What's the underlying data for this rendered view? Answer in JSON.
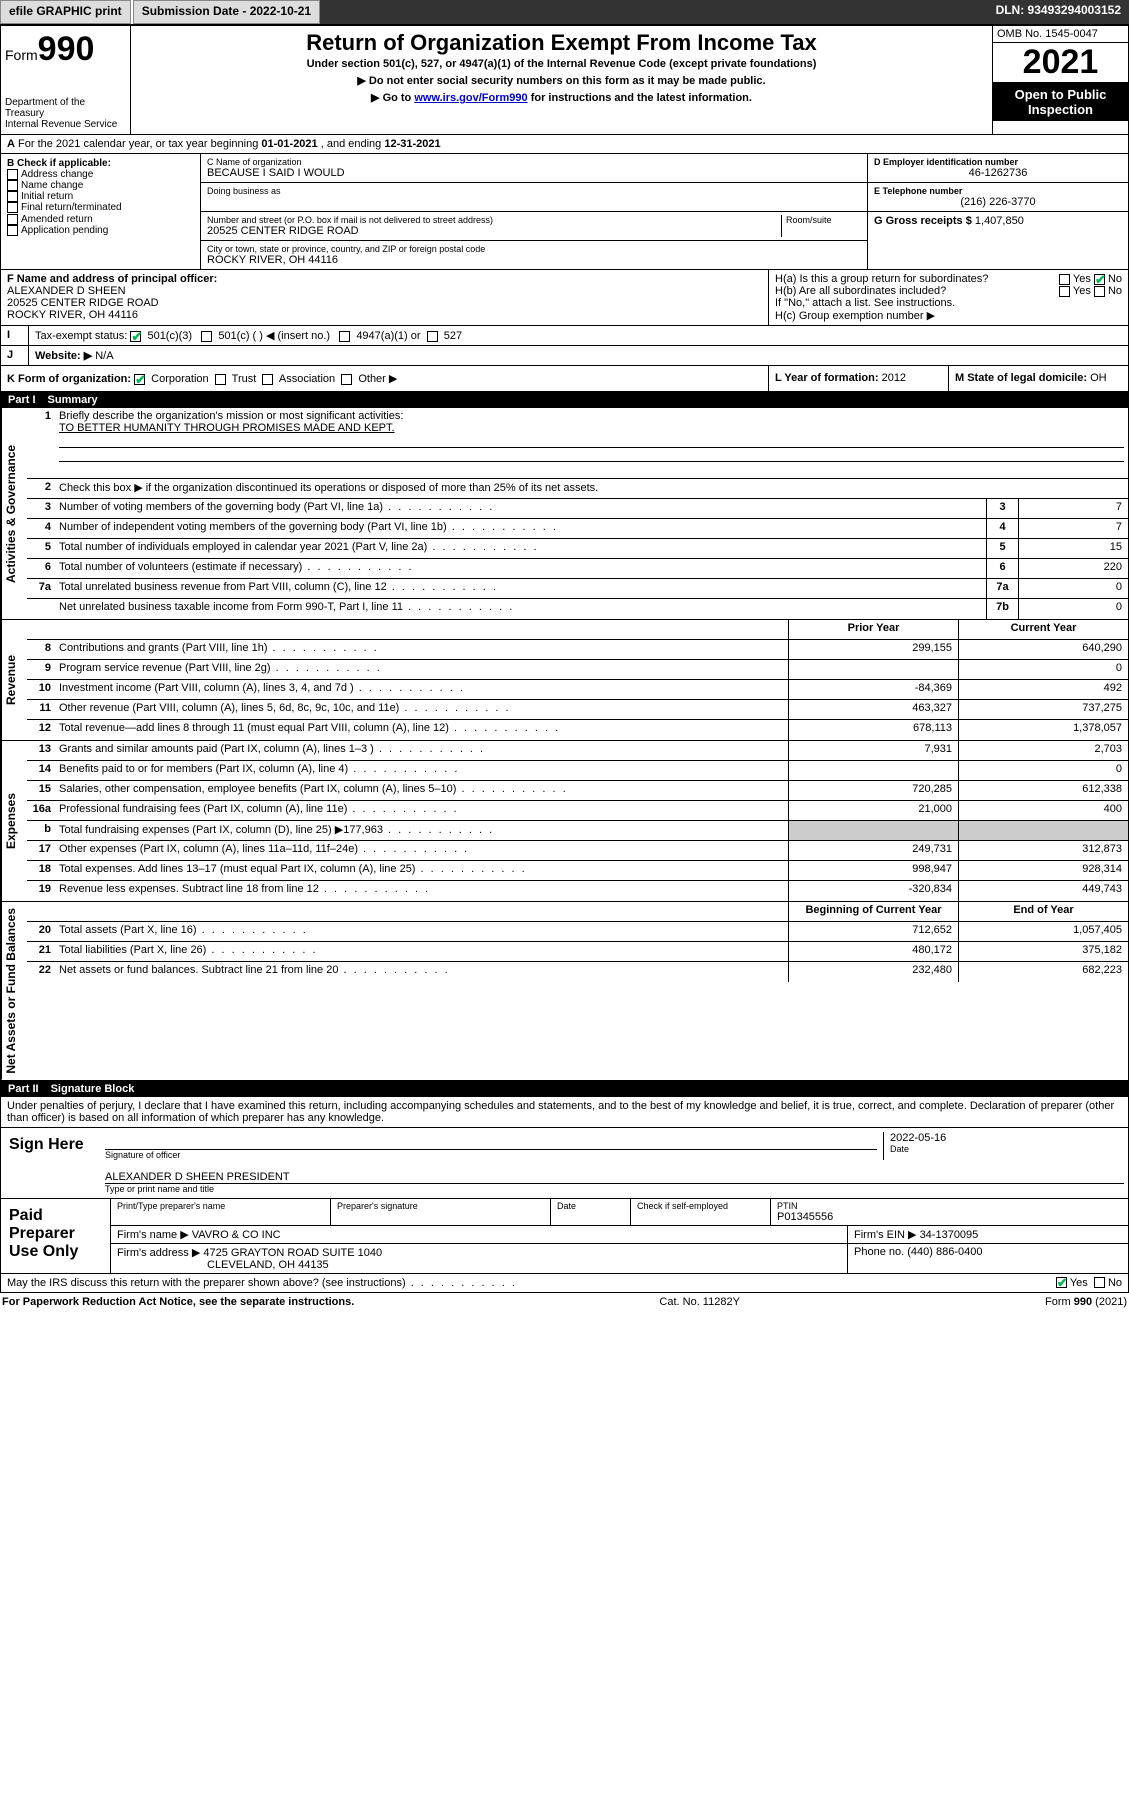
{
  "topbar": {
    "efile": "efile GRAPHIC print",
    "submission": "Submission Date - 2022-10-21",
    "dln": "DLN: 93493294003152"
  },
  "header": {
    "form_label": "Form",
    "form_number": "990",
    "dept": "Department of the Treasury",
    "irs": "Internal Revenue Service",
    "title": "Return of Organization Exempt From Income Tax",
    "subtitle": "Under section 501(c), 527, or 4947(a)(1) of the Internal Revenue Code (except private foundations)",
    "note1": "Do not enter social security numbers on this form as it may be made public.",
    "note2_pre": "Go to ",
    "note2_link": "www.irs.gov/Form990",
    "note2_post": " for instructions and the latest information.",
    "omb": "OMB No. 1545-0047",
    "year": "2021",
    "open": "Open to Public Inspection"
  },
  "sectionA": {
    "text_pre": "For the 2021 calendar year, or tax year beginning ",
    "begin": "01-01-2021",
    "mid": " , and ending ",
    "end": "12-31-2021"
  },
  "sectionB": {
    "label": "B Check if applicable:",
    "opts": [
      "Address change",
      "Name change",
      "Initial return",
      "Final return/terminated",
      "Amended return",
      "Application pending"
    ]
  },
  "sectionC": {
    "name_label": "C Name of organization",
    "name": "BECAUSE I SAID I WOULD",
    "dba_label": "Doing business as",
    "addr_label": "Number and street (or P.O. box if mail is not delivered to street address)",
    "room_label": "Room/suite",
    "addr": "20525 CENTER RIDGE ROAD",
    "city_label": "City or town, state or province, country, and ZIP or foreign postal code",
    "city": "ROCKY RIVER, OH  44116"
  },
  "sectionD": {
    "label": "D Employer identification number",
    "val": "46-1262736"
  },
  "sectionE": {
    "label": "E Telephone number",
    "val": "(216) 226-3770"
  },
  "sectionG": {
    "label": "G Gross receipts $",
    "val": "1,407,850"
  },
  "sectionF": {
    "label": "F Name and address of principal officer:",
    "name": "ALEXANDER D SHEEN",
    "addr1": "20525 CENTER RIDGE ROAD",
    "addr2": "ROCKY RIVER, OH  44116"
  },
  "sectionH": {
    "a": "H(a)  Is this a group return for subordinates?",
    "b": "H(b)  Are all subordinates included?",
    "b_note": "If \"No,\" attach a list. See instructions.",
    "c": "H(c)  Group exemption number ▶",
    "yes": "Yes",
    "no": "No"
  },
  "sectionI": {
    "label": "Tax-exempt status:",
    "c3": "501(c)(3)",
    "c": "501(c) (   ) ◀ (insert no.)",
    "a1": "4947(a)(1) or",
    "s527": "527"
  },
  "sectionJ": {
    "label": "Website: ▶",
    "val": "N/A"
  },
  "sectionK": {
    "label": "K Form of organization:",
    "corp": "Corporation",
    "trust": "Trust",
    "assoc": "Association",
    "other": "Other ▶"
  },
  "sectionL": {
    "label": "L Year of formation:",
    "val": "2012"
  },
  "sectionM": {
    "label": "M State of legal domicile:",
    "val": "OH"
  },
  "part1": {
    "num": "Part I",
    "title": "Summary",
    "q1": "Briefly describe the organization's mission or most significant activities:",
    "mission": "TO BETTER HUMANITY THROUGH PROMISES MADE AND KEPT.",
    "q2": "Check this box ▶         if the organization discontinued its operations or disposed of more than 25% of its net assets.",
    "prior": "Prior Year",
    "current": "Current Year",
    "begin": "Beginning of Current Year",
    "end": "End of Year",
    "sideA": "Activities & Governance",
    "sideR": "Revenue",
    "sideE": "Expenses",
    "sideN": "Net Assets or Fund Balances",
    "rows_act": [
      {
        "n": "3",
        "d": "Number of voting members of the governing body (Part VI, line 1a)",
        "box": "3",
        "v": "7"
      },
      {
        "n": "4",
        "d": "Number of independent voting members of the governing body (Part VI, line 1b)",
        "box": "4",
        "v": "7"
      },
      {
        "n": "5",
        "d": "Total number of individuals employed in calendar year 2021 (Part V, line 2a)",
        "box": "5",
        "v": "15"
      },
      {
        "n": "6",
        "d": "Total number of volunteers (estimate if necessary)",
        "box": "6",
        "v": "220"
      },
      {
        "n": "7a",
        "d": "Total unrelated business revenue from Part VIII, column (C), line 12",
        "box": "7a",
        "v": "0"
      },
      {
        "n": "",
        "d": "Net unrelated business taxable income from Form 990-T, Part I, line 11",
        "box": "7b",
        "v": "0"
      }
    ],
    "rows_rev": [
      {
        "n": "8",
        "d": "Contributions and grants (Part VIII, line 1h)",
        "p": "299,155",
        "c": "640,290"
      },
      {
        "n": "9",
        "d": "Program service revenue (Part VIII, line 2g)",
        "p": "",
        "c": "0"
      },
      {
        "n": "10",
        "d": "Investment income (Part VIII, column (A), lines 3, 4, and 7d )",
        "p": "-84,369",
        "c": "492"
      },
      {
        "n": "11",
        "d": "Other revenue (Part VIII, column (A), lines 5, 6d, 8c, 9c, 10c, and 11e)",
        "p": "463,327",
        "c": "737,275"
      },
      {
        "n": "12",
        "d": "Total revenue—add lines 8 through 11 (must equal Part VIII, column (A), line 12)",
        "p": "678,113",
        "c": "1,378,057"
      }
    ],
    "rows_exp": [
      {
        "n": "13",
        "d": "Grants and similar amounts paid (Part IX, column (A), lines 1–3 )",
        "p": "7,931",
        "c": "2,703"
      },
      {
        "n": "14",
        "d": "Benefits paid to or for members (Part IX, column (A), line 4)",
        "p": "",
        "c": "0"
      },
      {
        "n": "15",
        "d": "Salaries, other compensation, employee benefits (Part IX, column (A), lines 5–10)",
        "p": "720,285",
        "c": "612,338"
      },
      {
        "n": "16a",
        "d": "Professional fundraising fees (Part IX, column (A), line 11e)",
        "p": "21,000",
        "c": "400"
      },
      {
        "n": "b",
        "d": "Total fundraising expenses (Part IX, column (D), line 25) ▶177,963",
        "p": "grey",
        "c": "grey"
      },
      {
        "n": "17",
        "d": "Other expenses (Part IX, column (A), lines 11a–11d, 11f–24e)",
        "p": "249,731",
        "c": "312,873"
      },
      {
        "n": "18",
        "d": "Total expenses. Add lines 13–17 (must equal Part IX, column (A), line 25)",
        "p": "998,947",
        "c": "928,314"
      },
      {
        "n": "19",
        "d": "Revenue less expenses. Subtract line 18 from line 12",
        "p": "-320,834",
        "c": "449,743"
      }
    ],
    "rows_net": [
      {
        "n": "20",
        "d": "Total assets (Part X, line 16)",
        "p": "712,652",
        "c": "1,057,405"
      },
      {
        "n": "21",
        "d": "Total liabilities (Part X, line 26)",
        "p": "480,172",
        "c": "375,182"
      },
      {
        "n": "22",
        "d": "Net assets or fund balances. Subtract line 21 from line 20",
        "p": "232,480",
        "c": "682,223"
      }
    ]
  },
  "part2": {
    "num": "Part II",
    "title": "Signature Block",
    "decl": "Under penalties of perjury, I declare that I have examined this return, including accompanying schedules and statements, and to the best of my knowledge and belief, it is true, correct, and complete. Declaration of preparer (other than officer) is based on all information of which preparer has any knowledge.",
    "sign_here": "Sign Here",
    "sig_officer": "Signature of officer",
    "date": "Date",
    "date_val": "2022-05-16",
    "officer_name": "ALEXANDER D SHEEN  PRESIDENT",
    "type_name": "Type or print name and title",
    "paid": "Paid Preparer Use Only",
    "prep_name_label": "Print/Type preparer's name",
    "prep_sig_label": "Preparer's signature",
    "prep_date_label": "Date",
    "check_if": "Check         if self-employed",
    "ptin_label": "PTIN",
    "ptin": "P01345556",
    "firm_name_label": "Firm's name    ▶",
    "firm_name": "VAVRO & CO INC",
    "firm_ein_label": "Firm's EIN ▶",
    "firm_ein": "34-1370095",
    "firm_addr_label": "Firm's address ▶",
    "firm_addr1": "4725 GRAYTON ROAD SUITE 1040",
    "firm_addr2": "CLEVELAND, OH  44135",
    "phone_label": "Phone no.",
    "phone": "(440) 886-0400",
    "discuss": "May the IRS discuss this return with the preparer shown above? (see instructions)"
  },
  "footer": {
    "left": "For Paperwork Reduction Act Notice, see the separate instructions.",
    "mid": "Cat. No. 11282Y",
    "right": "Form 990 (2021)"
  }
}
